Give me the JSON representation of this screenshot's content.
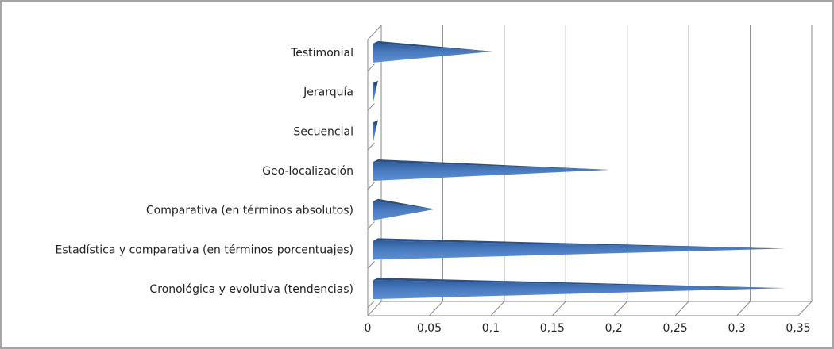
{
  "chart_data": {
    "type": "bar",
    "orientation": "horizontal",
    "categories": [
      "Cronológica y evolutiva (tendencias)",
      "Estadística y comparativa  (en términos porcentuajes)",
      "Comparativa (en términos absolutos)",
      "Geo-localización",
      "Secuencial",
      "Jerarquía",
      "Testimonial"
    ],
    "values": [
      0.333,
      0.333,
      0.048,
      0.19,
      0,
      0,
      0.095
    ],
    "color": "#4a7bc0",
    "xlim": [
      0,
      0.35
    ],
    "xticks": [
      0,
      {
        "value": 0.05,
        "label": "0,05"
      },
      {
        "value": 0.1,
        "label": "0,1"
      },
      {
        "value": 0.15,
        "label": "0,15"
      },
      {
        "value": 0.2,
        "label": "0,2"
      },
      {
        "value": 0.25,
        "label": "0,25"
      },
      {
        "value": 0.3,
        "label": "0,3"
      },
      {
        "value": 0.35,
        "label": "0,35"
      }
    ],
    "grid": true
  }
}
